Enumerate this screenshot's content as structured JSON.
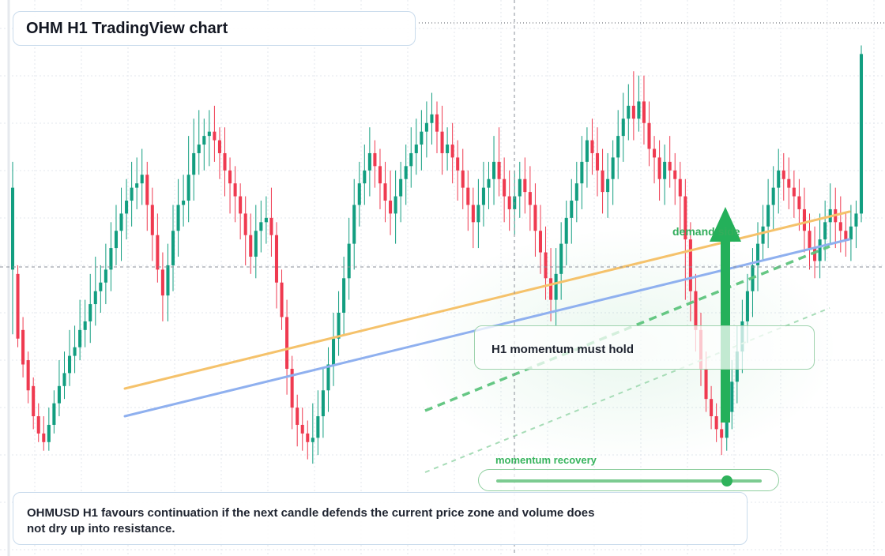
{
  "title": "OHM H1 TradingView chart",
  "caption": "OHMUSD H1 favours continuation if the next candle defends the current price zone and volume does not dry up into resistance.",
  "annotations": {
    "note": "H1 momentum must hold",
    "demand_label": "demand side",
    "momentum_label": "momentum recovery",
    "momentum_level": 0.87
  },
  "colors": {
    "up": "#129e80",
    "down": "#ef3a50",
    "trend_orange": "#f5c26b",
    "trend_blue": "#8fb0ef",
    "accent_green": "#24b05a",
    "grid": "#e3e7ee"
  },
  "chart_data": {
    "type": "candlestick",
    "symbol": "OHMUSD",
    "timeframe": "H1",
    "value_scale": [
      0,
      100
    ],
    "grid": true,
    "candles": [
      [
        47,
        66,
        32,
        72
      ],
      [
        46,
        31,
        29,
        48
      ],
      [
        33,
        25,
        22,
        36
      ],
      [
        26,
        19,
        16,
        28
      ],
      [
        20,
        13,
        10,
        22
      ],
      [
        13,
        9,
        7,
        16
      ],
      [
        9,
        7,
        5,
        13
      ],
      [
        7,
        11,
        5,
        15
      ],
      [
        11,
        16,
        9,
        19
      ],
      [
        16,
        20,
        13,
        26
      ],
      [
        20,
        23,
        17,
        28
      ],
      [
        23,
        27,
        20,
        33
      ],
      [
        27,
        29,
        23,
        34
      ],
      [
        29,
        33,
        26,
        40
      ],
      [
        33,
        35,
        29,
        40
      ],
      [
        35,
        39,
        30,
        46
      ],
      [
        39,
        42,
        34,
        50
      ],
      [
        42,
        44,
        37,
        48
      ],
      [
        44,
        47,
        39,
        53
      ],
      [
        47,
        52,
        42,
        58
      ],
      [
        52,
        56,
        48,
        62
      ],
      [
        56,
        60,
        49,
        66
      ],
      [
        60,
        63,
        54,
        68
      ],
      [
        63,
        66,
        57,
        72
      ],
      [
        66,
        67,
        61,
        73
      ],
      [
        67,
        69,
        62,
        75
      ],
      [
        69,
        62,
        56,
        72
      ],
      [
        62,
        55,
        49,
        66
      ],
      [
        55,
        47,
        44,
        60
      ],
      [
        47,
        41,
        35,
        51
      ],
      [
        41,
        48,
        35,
        53
      ],
      [
        48,
        56,
        42,
        62
      ],
      [
        56,
        62,
        50,
        68
      ],
      [
        62,
        63,
        57,
        69
      ],
      [
        63,
        69,
        58,
        78
      ],
      [
        69,
        74,
        63,
        82
      ],
      [
        74,
        76,
        69,
        84
      ],
      [
        76,
        78,
        70,
        82
      ],
      [
        78,
        79,
        71,
        84
      ],
      [
        79,
        77,
        72,
        85
      ],
      [
        77,
        74,
        68,
        80
      ],
      [
        74,
        70,
        64,
        80
      ],
      [
        70,
        67,
        60,
        73
      ],
      [
        67,
        64,
        58,
        71
      ],
      [
        64,
        60,
        54,
        67
      ],
      [
        60,
        55,
        48,
        64
      ],
      [
        55,
        50,
        46,
        60
      ],
      [
        50,
        56,
        45,
        62
      ],
      [
        56,
        58,
        51,
        63
      ],
      [
        58,
        59,
        53,
        64
      ],
      [
        59,
        55,
        50,
        66
      ],
      [
        55,
        44,
        38,
        58
      ],
      [
        44,
        36,
        33,
        47
      ],
      [
        36,
        24,
        18,
        40
      ],
      [
        24,
        15,
        10,
        27
      ],
      [
        15,
        11,
        6,
        18
      ],
      [
        11,
        9,
        5,
        15
      ],
      [
        9,
        7,
        3,
        12
      ],
      [
        7,
        8,
        2,
        16
      ],
      [
        8,
        13,
        4,
        19
      ],
      [
        13,
        19,
        8,
        24
      ],
      [
        19,
        25,
        14,
        29
      ],
      [
        25,
        31,
        20,
        37
      ],
      [
        31,
        37,
        27,
        42
      ],
      [
        37,
        45,
        32,
        50
      ],
      [
        45,
        53,
        40,
        59
      ],
      [
        53,
        62,
        47,
        68
      ],
      [
        62,
        67,
        57,
        72
      ],
      [
        67,
        70,
        62,
        76
      ],
      [
        70,
        74,
        64,
        80
      ],
      [
        74,
        71,
        66,
        77
      ],
      [
        71,
        67,
        61,
        75
      ],
      [
        67,
        63,
        58,
        72
      ],
      [
        63,
        60,
        55,
        70
      ],
      [
        60,
        64,
        53,
        70
      ],
      [
        64,
        68,
        58,
        72
      ],
      [
        68,
        71,
        62,
        76
      ],
      [
        71,
        74,
        66,
        80
      ],
      [
        74,
        76,
        69,
        82
      ],
      [
        76,
        79,
        70,
        84
      ],
      [
        79,
        81,
        73,
        86
      ],
      [
        81,
        83,
        76,
        88
      ],
      [
        83,
        79,
        74,
        86
      ],
      [
        79,
        74,
        69,
        85
      ],
      [
        74,
        76,
        70,
        80
      ],
      [
        76,
        73,
        67,
        81
      ],
      [
        73,
        70,
        63,
        77
      ],
      [
        70,
        66,
        61,
        75
      ],
      [
        66,
        62,
        56,
        70
      ],
      [
        62,
        58,
        52,
        66
      ],
      [
        58,
        62,
        52,
        68
      ],
      [
        62,
        66,
        57,
        72
      ],
      [
        66,
        68,
        61,
        72
      ],
      [
        68,
        72,
        62,
        78
      ],
      [
        72,
        68,
        64,
        80
      ],
      [
        68,
        64,
        58,
        73
      ],
      [
        64,
        61,
        56,
        70
      ],
      [
        61,
        64,
        55,
        70
      ],
      [
        64,
        68,
        59,
        72
      ],
      [
        68,
        65,
        60,
        73
      ],
      [
        65,
        62,
        56,
        71
      ],
      [
        62,
        56,
        50,
        67
      ],
      [
        56,
        51,
        46,
        62
      ],
      [
        51,
        45,
        40,
        57
      ],
      [
        45,
        40,
        35,
        52
      ],
      [
        40,
        46,
        34,
        52
      ],
      [
        46,
        53,
        40,
        58
      ],
      [
        53,
        59,
        48,
        63
      ],
      [
        59,
        63,
        53,
        68
      ],
      [
        63,
        67,
        58,
        72
      ],
      [
        67,
        72,
        61,
        78
      ],
      [
        72,
        77,
        66,
        80
      ],
      [
        77,
        74,
        69,
        82
      ],
      [
        74,
        70,
        64,
        80
      ],
      [
        70,
        65,
        60,
        75
      ],
      [
        65,
        68,
        59,
        74
      ],
      [
        68,
        73,
        62,
        77
      ],
      [
        73,
        78,
        68,
        84
      ],
      [
        78,
        82,
        72,
        88
      ],
      [
        82,
        85,
        77,
        90
      ],
      [
        85,
        82,
        77,
        93
      ],
      [
        82,
        86,
        79,
        92
      ],
      [
        86,
        81,
        76,
        92
      ],
      [
        81,
        75,
        71,
        86
      ],
      [
        75,
        73,
        67,
        78
      ],
      [
        73,
        68,
        63,
        77
      ],
      [
        68,
        72,
        62,
        76
      ],
      [
        72,
        70,
        66,
        78
      ],
      [
        70,
        68,
        62,
        74
      ],
      [
        68,
        64,
        56,
        72
      ],
      [
        64,
        54,
        40,
        68
      ],
      [
        54,
        42,
        35,
        58
      ],
      [
        42,
        33,
        28,
        46
      ],
      [
        33,
        24,
        20,
        37
      ],
      [
        24,
        17,
        14,
        28
      ],
      [
        17,
        13,
        10,
        20
      ],
      [
        13,
        10,
        7,
        16
      ],
      [
        10,
        8,
        4,
        14
      ],
      [
        8,
        14,
        5,
        18
      ],
      [
        14,
        21,
        10,
        26
      ],
      [
        21,
        28,
        16,
        34
      ],
      [
        28,
        35,
        23,
        40
      ],
      [
        35,
        42,
        30,
        46
      ],
      [
        42,
        48,
        36,
        52
      ],
      [
        48,
        53,
        42,
        58
      ],
      [
        53,
        57,
        49,
        62
      ],
      [
        57,
        62,
        52,
        68
      ],
      [
        62,
        66,
        56,
        71
      ],
      [
        66,
        70,
        60,
        75
      ],
      [
        70,
        68,
        63,
        74
      ],
      [
        68,
        66,
        61,
        73
      ],
      [
        66,
        64,
        59,
        70
      ],
      [
        64,
        61,
        56,
        68
      ],
      [
        61,
        56,
        51,
        66
      ],
      [
        56,
        52,
        47,
        60
      ],
      [
        52,
        49,
        45,
        57
      ],
      [
        49,
        54,
        45,
        60
      ],
      [
        54,
        58,
        49,
        63
      ],
      [
        58,
        61,
        53,
        67
      ],
      [
        61,
        58,
        52,
        66
      ],
      [
        58,
        56,
        51,
        64
      ],
      [
        56,
        54,
        50,
        60
      ],
      [
        54,
        57,
        49,
        62
      ],
      [
        57,
        60,
        52,
        63
      ],
      [
        60,
        97,
        58,
        99
      ]
    ]
  }
}
